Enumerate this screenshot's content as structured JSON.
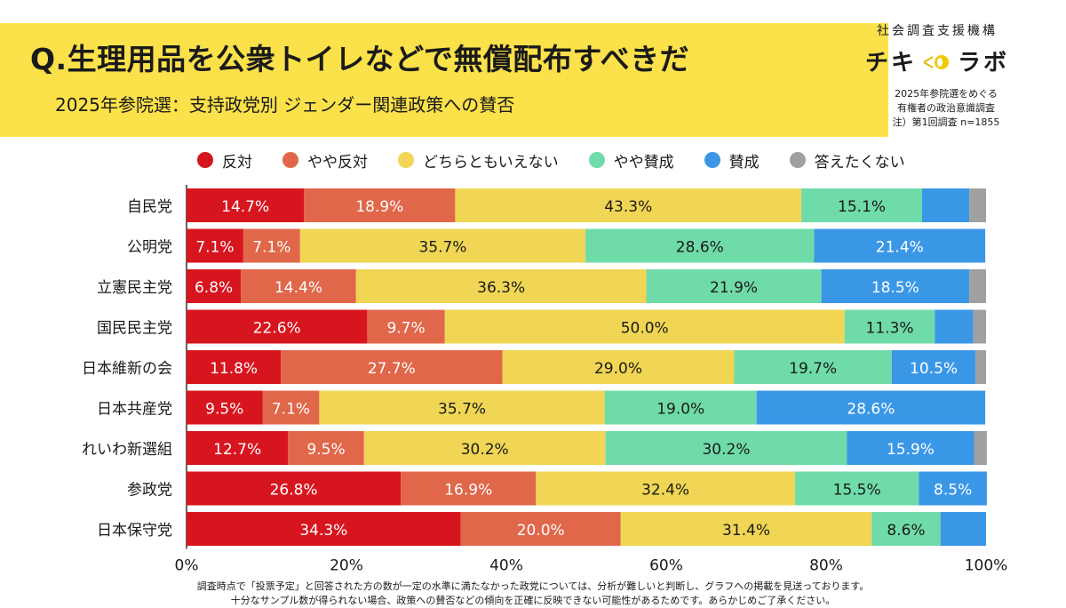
{
  "header": {
    "title": "Q.生理用品を公衆トイレなどで無償配布すべきだ",
    "subtitle": "2025年参院選：支持政党別 ジェンダー関連政策への賛否"
  },
  "org": {
    "name": "社会調査支援機構",
    "logo_left": "チキ",
    "logo_right": "ラボ"
  },
  "survey_note": {
    "line1": "2025年参院選をめぐる",
    "line2": "有権者の政治意識調査",
    "line3": "注）第1回調査 n=1855"
  },
  "footnote": {
    "line1": "調査時点で「投票予定」と回答された方の数が一定の水準に満たなかった政党については、分析が難しいと判断し、グラフへの掲載を見送っております。",
    "line2": "十分なサンプル数が得られない場合、政策への賛否などの傾向を正確に反映できない可能性があるためです。あらかじめご了承ください。"
  },
  "colors": {
    "banner": "#fbe14a",
    "反対": "#d7151f",
    "やや反対": "#e0674a",
    "どちらともいえない": "#f0d654",
    "やや賛成": "#6fdba8",
    "賛成": "#3a97e6",
    "答えたくない": "#a0a0a0"
  },
  "chart_data": {
    "type": "bar",
    "orientation": "horizontal",
    "stacked": true,
    "percent": true,
    "xlim": [
      0,
      100
    ],
    "x_ticks": [
      "0%",
      "20%",
      "40%",
      "60%",
      "80%",
      "100%"
    ],
    "legend_position": "top",
    "categories": [
      "自民党",
      "公明党",
      "立憲民主党",
      "国民民主党",
      "日本維新の会",
      "日本共産党",
      "れいわ新選組",
      "参政党",
      "日本保守党"
    ],
    "series": [
      {
        "name": "反対",
        "values": [
          14.7,
          7.1,
          6.8,
          22.6,
          11.8,
          9.5,
          12.7,
          26.8,
          34.3
        ]
      },
      {
        "name": "やや反対",
        "values": [
          18.9,
          7.1,
          14.4,
          9.7,
          27.7,
          7.1,
          9.5,
          16.9,
          20.0
        ]
      },
      {
        "name": "どちらともいえない",
        "values": [
          43.3,
          35.7,
          36.3,
          50.0,
          29.0,
          35.7,
          30.2,
          32.4,
          31.4
        ]
      },
      {
        "name": "やや賛成",
        "values": [
          15.1,
          28.6,
          21.9,
          11.3,
          19.7,
          19.0,
          30.2,
          15.5,
          8.6
        ]
      },
      {
        "name": "賛成",
        "values": [
          5.9,
          21.4,
          18.5,
          4.8,
          10.5,
          28.6,
          15.9,
          8.5,
          5.7
        ]
      },
      {
        "name": "答えたくない",
        "values": [
          2.1,
          0,
          2.1,
          1.6,
          1.3,
          0,
          1.6,
          0,
          0
        ]
      }
    ],
    "data_labels": [
      [
        "14.7%",
        "18.9%",
        "43.3%",
        "15.1%",
        "",
        ""
      ],
      [
        "7.1%",
        "7.1%",
        "35.7%",
        "28.6%",
        "21.4%",
        ""
      ],
      [
        "6.8%",
        "14.4%",
        "36.3%",
        "21.9%",
        "18.5%",
        ""
      ],
      [
        "22.6%",
        "9.7%",
        "50.0%",
        "11.3%",
        "",
        ""
      ],
      [
        "11.8%",
        "27.7%",
        "29.0%",
        "19.7%",
        "10.5%",
        ""
      ],
      [
        "9.5%",
        "7.1%",
        "35.7%",
        "19.0%",
        "28.6%",
        ""
      ],
      [
        "12.7%",
        "9.5%",
        "30.2%",
        "30.2%",
        "15.9%",
        ""
      ],
      [
        "26.8%",
        "16.9%",
        "32.4%",
        "15.5%",
        "8.5%",
        ""
      ],
      [
        "34.3%",
        "20.0%",
        "31.4%",
        "8.6%",
        "",
        ""
      ]
    ]
  }
}
